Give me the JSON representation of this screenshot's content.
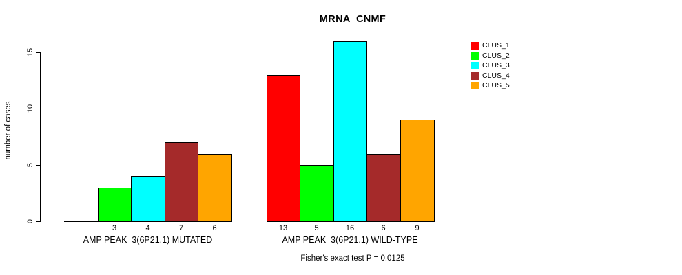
{
  "chart_data": {
    "type": "bar",
    "title": "MRNA_CNMF",
    "ylabel": "number of cases",
    "xlabel": "",
    "annotation": "Fisher's exact test P = 0.0125",
    "yticks": [
      0,
      5,
      10,
      15
    ],
    "ylim": [
      0,
      16
    ],
    "grid": false,
    "legend_position": "top-right",
    "categories": [
      "AMP PEAK  3(6P21.1) MUTATED",
      "AMP PEAK  3(6P21.1) WILD-TYPE"
    ],
    "category_keys": [
      "mutated",
      "wild-type"
    ],
    "series": [
      {
        "name": "CLUS_1",
        "color": "#FF0000",
        "values": [
          0,
          13
        ]
      },
      {
        "name": "CLUS_2",
        "color": "#00FF00",
        "values": [
          3,
          5
        ]
      },
      {
        "name": "CLUS_3",
        "color": "#00FFFF",
        "values": [
          4,
          16
        ]
      },
      {
        "name": "CLUS_4",
        "color": "#A52A2A",
        "values": [
          7,
          6
        ]
      },
      {
        "name": "CLUS_5",
        "color": "#FFA500",
        "values": [
          6,
          9
        ]
      }
    ],
    "bar_value_labels": [
      "3",
      "4",
      "7",
      "6",
      "13",
      "5",
      "16",
      "6",
      "9"
    ],
    "zero_value_labels_hidden": true
  },
  "colors": {
    "background": "#FFFFFF",
    "axis": "#000000",
    "text": "#000000"
  }
}
